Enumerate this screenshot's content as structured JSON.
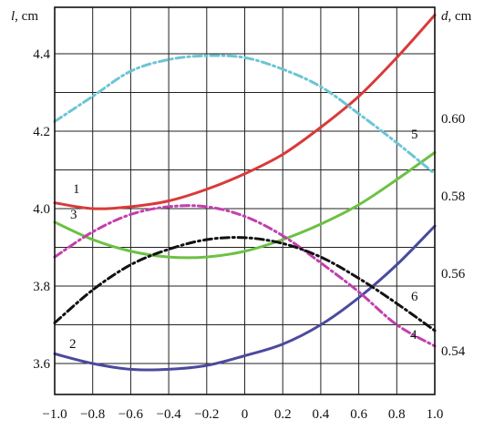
{
  "chart_data": {
    "type": "line",
    "left_axis_label_var": "l",
    "left_axis_label_unit": ", cm",
    "right_axis_label_var": "d",
    "right_axis_label_unit": ", cm",
    "x_ticks": [
      "−1.0",
      "−0.8",
      "−0.6",
      "−0.4",
      "−0.2",
      "0",
      "0.2",
      "0.4",
      "0.6",
      "0.8",
      "1.0"
    ],
    "left_y_ticks": [
      "3.6",
      "3.8",
      "4.0",
      "4.2",
      "4.4"
    ],
    "right_y_ticks": [
      "0.54",
      "0.56",
      "0.58",
      "0.60"
    ],
    "xlim": [
      -1.0,
      1.0
    ],
    "left_ylim": [
      3.52,
      4.52
    ],
    "right_ylim": [
      3.52,
      4.52
    ],
    "grid": true,
    "series": [
      {
        "name": "1",
        "axis": "left",
        "color": "#d93a3a",
        "style": "solid",
        "x": [
          -1.0,
          -0.8,
          -0.6,
          -0.4,
          -0.2,
          0,
          0.2,
          0.4,
          0.6,
          0.8,
          1.0
        ],
        "y": [
          4.015,
          4.0,
          4.005,
          4.02,
          4.05,
          4.09,
          4.14,
          4.21,
          4.29,
          4.39,
          4.5
        ]
      },
      {
        "name": "2",
        "axis": "left",
        "color": "#4b4a9e",
        "style": "solid",
        "x": [
          -1.0,
          -0.8,
          -0.6,
          -0.4,
          -0.2,
          0,
          0.2,
          0.4,
          0.6,
          0.8,
          1.0
        ],
        "y": [
          3.625,
          3.6,
          3.585,
          3.585,
          3.595,
          3.62,
          3.65,
          3.7,
          3.77,
          3.855,
          3.955
        ]
      },
      {
        "name": "3",
        "axis": "left",
        "color": "#6cc143",
        "style": "solid",
        "x": [
          -1.0,
          -0.8,
          -0.6,
          -0.4,
          -0.2,
          0,
          0.2,
          0.4,
          0.6,
          0.8,
          1.0
        ],
        "y": [
          3.965,
          3.92,
          3.89,
          3.875,
          3.875,
          3.89,
          3.92,
          3.96,
          4.01,
          4.075,
          4.145
        ]
      },
      {
        "name": "4",
        "axis": "right",
        "color": "#c23fae",
        "style": "dashdot",
        "x": [
          -1.0,
          -0.8,
          -0.6,
          -0.4,
          -0.2,
          0,
          0.2,
          0.4,
          0.6,
          0.8,
          1.0
        ],
        "y": [
          3.875,
          3.94,
          3.985,
          4.005,
          4.005,
          3.98,
          3.93,
          3.86,
          3.785,
          3.7,
          3.645
        ]
      },
      {
        "name": "5",
        "axis": "right",
        "color": "#6cc5d4",
        "style": "dashdot",
        "x": [
          -1.0,
          -0.8,
          -0.6,
          -0.4,
          -0.2,
          0,
          0.2,
          0.4,
          0.6,
          0.8,
          1.0
        ],
        "y": [
          4.225,
          4.29,
          4.355,
          4.385,
          4.395,
          4.39,
          4.36,
          4.315,
          4.245,
          4.17,
          4.09
        ]
      },
      {
        "name": "6",
        "axis": "right",
        "color": "#111111",
        "style": "dashdot",
        "x": [
          -1.0,
          -0.8,
          -0.6,
          -0.4,
          -0.2,
          0,
          0.2,
          0.4,
          0.6,
          0.8,
          1.0
        ],
        "y": [
          3.705,
          3.79,
          3.855,
          3.895,
          3.92,
          3.925,
          3.91,
          3.875,
          3.82,
          3.755,
          3.685
        ]
      }
    ]
  }
}
